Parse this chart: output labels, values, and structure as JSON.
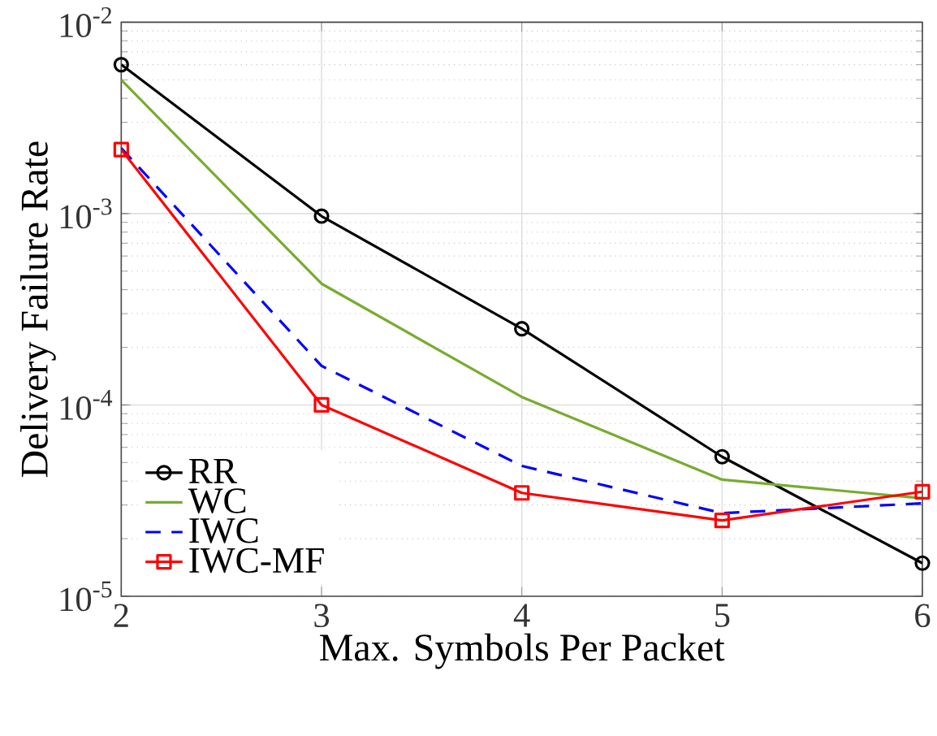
{
  "chart_data": {
    "type": "line",
    "xlabel": "Max. Symbols Per Packet",
    "ylabel": "Delivery Failure Rate",
    "log": "y",
    "grid": true,
    "legend": "bottom left",
    "x": [
      2,
      3,
      4,
      5,
      6
    ],
    "xlim": [
      2,
      6
    ],
    "xticks": [
      2,
      3,
      4,
      5,
      6
    ],
    "ylim": [
      1e-05,
      0.01
    ],
    "yticks": [
      {
        "value": 1e-05,
        "label": "10$^{-5}$"
      },
      {
        "value": 0.0001,
        "label": "10$^{-4}$"
      },
      {
        "value": 0.001,
        "label": "10$^{-3}$"
      },
      {
        "value": 0.01,
        "label": "10$^{-2}$"
      }
    ],
    "series": [
      {
        "name": "RR",
        "color": "#000000",
        "marker": "circle",
        "line_style": "solid",
        "values": [
          0.006,
          0.00097,
          0.00025,
          5.36e-05,
          1.49e-05
        ]
      },
      {
        "name": "WC",
        "color": "#77ac30",
        "marker": "none",
        "line_style": "solid",
        "values": [
          0.005,
          0.00043,
          0.00011,
          4.07e-05,
          3.25e-05
        ]
      },
      {
        "name": "IWC",
        "color": "#0000ff",
        "marker": "none",
        "line_style": "dashed",
        "values": [
          0.0022,
          0.00016,
          4.8e-05,
          2.72e-05,
          3.06e-05
        ]
      },
      {
        "name": "IWC-MF",
        "color": "#ff0000",
        "marker": "square",
        "line_style": "solid",
        "values": [
          0.00216,
          0.0001,
          3.47e-05,
          2.49e-05,
          3.52e-05
        ]
      }
    ]
  }
}
